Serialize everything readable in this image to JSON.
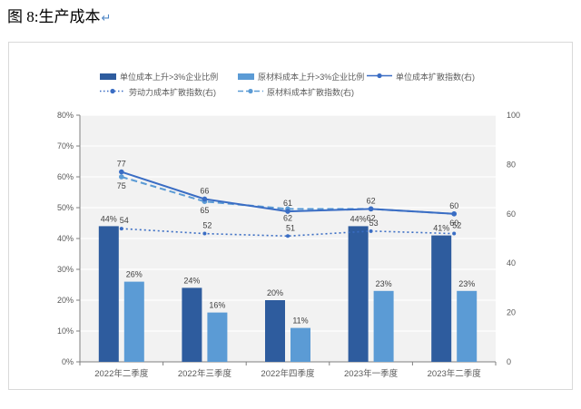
{
  "page": {
    "title": "图 8:生产成本",
    "return_mark": "↵"
  },
  "legend": {
    "items": [
      {
        "label": "单位成本上升>3%企业比例",
        "type": "bar",
        "style": "solid",
        "color": "#2e5c9e"
      },
      {
        "label": "原材料成本上升>3%企业比例",
        "type": "bar",
        "style": "solid",
        "color": "#5b9bd5"
      },
      {
        "label": "单位成本扩散指数(右)",
        "type": "line",
        "style": "solid",
        "color": "#3a6dc4"
      },
      {
        "label": "劳动力成本扩散指数(右)",
        "type": "line",
        "style": "dotted",
        "color": "#3a6dc4"
      },
      {
        "label": "原材料成本扩散指数(右)",
        "type": "line",
        "style": "dashed",
        "color": "#5b9bd5"
      }
    ]
  },
  "chart_data": {
    "type": "bar",
    "subtype": "bar+line combo with dual y-axis",
    "title": "生产成本",
    "categories": [
      "2022年二季度",
      "2022年三季度",
      "2022年四季度",
      "2023年一季度",
      "2023年二季度"
    ],
    "series": [
      {
        "name": "单位成本上升>3%企业比例",
        "type": "bar",
        "axis": "left",
        "color": "#2e5c9e",
        "values": [
          44,
          24,
          20,
          44,
          41
        ],
        "labels": [
          "44%",
          "24%",
          "20%",
          "44%",
          "41%"
        ]
      },
      {
        "name": "原材料成本上升>3%企业比例",
        "type": "bar",
        "axis": "left",
        "color": "#5b9bd5",
        "values": [
          26,
          16,
          11,
          23,
          23
        ],
        "labels": [
          "26%",
          "16%",
          "11%",
          "23%",
          "23%"
        ]
      },
      {
        "name": "单位成本扩散指数(右)",
        "type": "line",
        "line_style": "solid",
        "axis": "right",
        "color": "#3a6dc4",
        "values": [
          77,
          66,
          61,
          62,
          60
        ],
        "label_position": "above"
      },
      {
        "name": "劳动力成本扩散指数(右)",
        "type": "line",
        "line_style": "dotted",
        "axis": "right",
        "color": "#3a6dc4",
        "values": [
          54,
          52,
          51,
          53,
          52
        ],
        "label_position": "above"
      },
      {
        "name": "原材料成本扩散指数(右)",
        "type": "line",
        "line_style": "dashed",
        "axis": "right",
        "color": "#5b9bd5",
        "values": [
          75,
          65,
          62,
          62,
          60
        ],
        "label_position": "below"
      }
    ],
    "left_axis": {
      "min": 0,
      "max": 80,
      "step": 10,
      "suffix": "%"
    },
    "right_axis": {
      "min": 0,
      "max": 100,
      "step": 20,
      "suffix": ""
    },
    "grid": true,
    "legend_position": "top",
    "plot_background": "#f2f2f2",
    "gridline_color": "#ffffff",
    "axis_color": "#7f7f7f",
    "tick_label_color": "#595959",
    "data_label_color": "#404040"
  }
}
